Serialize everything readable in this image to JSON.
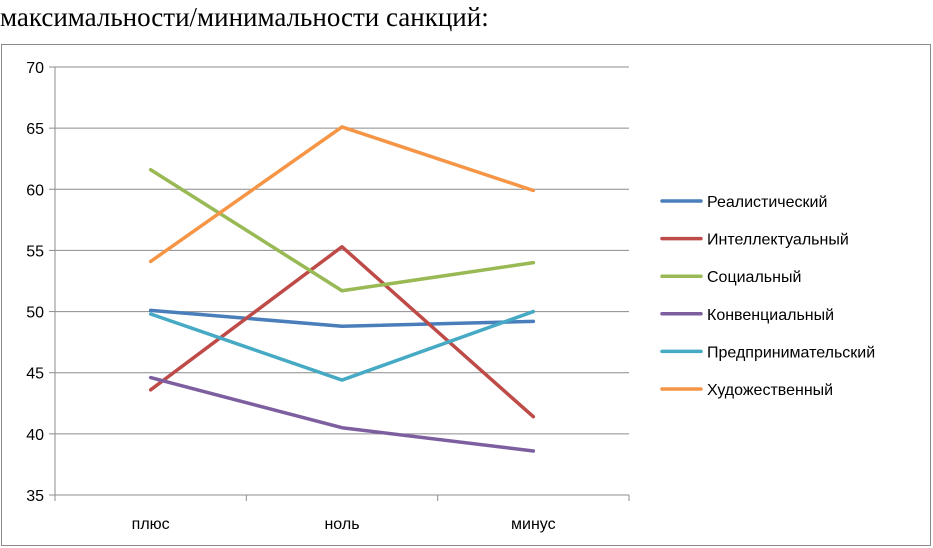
{
  "heading": "максимальности/минимальности санкций:",
  "chart_data": {
    "type": "line",
    "categories": [
      "плюс",
      "ноль",
      "минус"
    ],
    "ylim": [
      35,
      70
    ],
    "yticks": [
      35,
      40,
      45,
      50,
      55,
      60,
      65,
      70
    ],
    "grid": true,
    "legend_position": "right",
    "series": [
      {
        "name": "Реалистический",
        "color": "#4a7ebb",
        "values": [
          50.1,
          48.8,
          49.2
        ]
      },
      {
        "name": "Интеллектуальный",
        "color": "#be4b48",
        "values": [
          43.6,
          55.3,
          41.4
        ]
      },
      {
        "name": "Социальный",
        "color": "#98b954",
        "values": [
          61.6,
          51.7,
          54.0
        ]
      },
      {
        "name": "Конвенциальный",
        "color": "#7d5fa0",
        "values": [
          44.6,
          40.5,
          38.6
        ]
      },
      {
        "name": "Предпринимательский",
        "color": "#46aac5",
        "values": [
          49.8,
          44.4,
          50.0
        ]
      },
      {
        "name": "Художественный",
        "color": "#f69546",
        "values": [
          54.1,
          65.1,
          59.9
        ]
      }
    ]
  }
}
